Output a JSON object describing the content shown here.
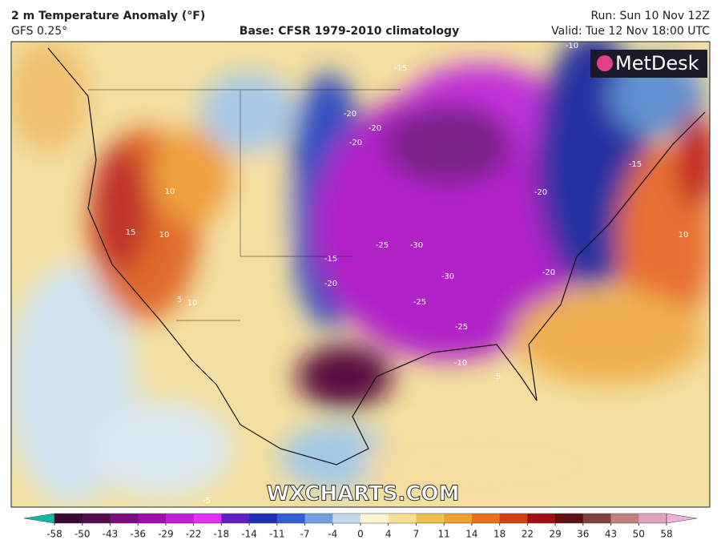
{
  "header": {
    "title": "2 m Temperature Anomaly (°F)",
    "subtitle": "GFS 0.25°",
    "base": "Base: CFSR 1979-2010 climatology",
    "run": "Run: Sun 10 Nov 12Z",
    "valid": "Valid: Tue 12 Nov 18:00 UTC"
  },
  "map": {
    "logo": "MetDesk",
    "watermark": "WXCHARTS.COM",
    "contour_labels": [
      -15,
      -20,
      -20,
      -20,
      -20,
      -15,
      -25,
      -30,
      -30,
      -25,
      -25,
      -20,
      -15,
      -10,
      -20,
      10,
      10,
      15,
      5,
      10,
      10,
      -10,
      -5,
      5
    ]
  },
  "colorbar": {
    "ticks": [
      -58,
      -50,
      -43,
      -36,
      -29,
      -22,
      -18,
      -14,
      -11,
      -7,
      -4,
      0,
      4,
      7,
      11,
      14,
      18,
      22,
      29,
      36,
      43,
      50,
      58
    ],
    "colors": [
      "#10b8a0",
      "#3a0830",
      "#5a0a50",
      "#7a0a80",
      "#9a10a8",
      "#c020d0",
      "#e030f0",
      "#6020c0",
      "#2030b0",
      "#3060d0",
      "#70a0e0",
      "#c0d8f0",
      "#fff4d0",
      "#f8e090",
      "#f0c050",
      "#f0a030",
      "#e87020",
      "#d04010",
      "#a01010",
      "#601010",
      "#804040",
      "#c08080",
      "#e0a0c0",
      "#f0b0d8"
    ]
  }
}
